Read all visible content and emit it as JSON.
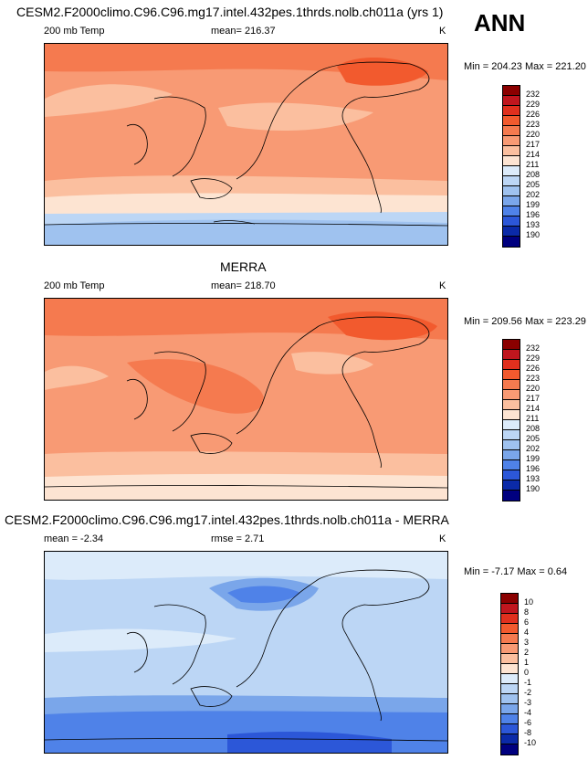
{
  "season_label": "ANN",
  "panels": [
    {
      "title": "CESM2.F2000climo.C96.C96.mg17.intel.432pes.1thrds.nolb.ch011a (yrs 1)",
      "left_label": "200 mb Temp",
      "center_label": "mean= 216.37",
      "right_label": "K",
      "minmax": "Min = 204.23 Max = 221.20",
      "colorbar": {
        "ticks": [
          "232",
          "229",
          "226",
          "223",
          "220",
          "217",
          "214",
          "211",
          "208",
          "205",
          "202",
          "199",
          "196",
          "193",
          "190"
        ],
        "colors": [
          "#8b0000",
          "#c0161e",
          "#e0301e",
          "#f25a2e",
          "#f57a4f",
          "#f89a74",
          "#fbbf9f",
          "#fde4d2",
          "#dcebfa",
          "#bcd6f5",
          "#9fc2ef",
          "#7aa6ea",
          "#4f82e8",
          "#2c57d8",
          "#0b2aa8",
          "#00007f"
        ]
      }
    },
    {
      "title": "MERRA",
      "left_label": "200 mb Temp",
      "center_label": "mean= 218.70",
      "right_label": "K",
      "minmax": "Min = 209.56 Max = 223.29",
      "colorbar": {
        "ticks": [
          "232",
          "229",
          "226",
          "223",
          "220",
          "217",
          "214",
          "211",
          "208",
          "205",
          "202",
          "199",
          "196",
          "193",
          "190"
        ],
        "colors": [
          "#8b0000",
          "#c0161e",
          "#e0301e",
          "#f25a2e",
          "#f57a4f",
          "#f89a74",
          "#fbbf9f",
          "#fde4d2",
          "#dcebfa",
          "#bcd6f5",
          "#9fc2ef",
          "#7aa6ea",
          "#4f82e8",
          "#2c57d8",
          "#0b2aa8",
          "#00007f"
        ]
      }
    },
    {
      "title": "CESM2.F2000climo.C96.C96.mg17.intel.432pes.1thrds.nolb.ch011a - MERRA",
      "left_label": "mean =  -2.34",
      "center_label": "rmse =   2.71",
      "right_label": "K",
      "minmax": "Min =  -7.17 Max =   0.64",
      "colorbar": {
        "ticks": [
          "10",
          "8",
          "6",
          "4",
          "3",
          "2",
          "1",
          "0",
          "-1",
          "-2",
          "-3",
          "-4",
          "-6",
          "-8",
          "-10"
        ],
        "colors": [
          "#8b0000",
          "#c0161e",
          "#e0301e",
          "#f25a2e",
          "#f57a4f",
          "#f89a74",
          "#fbbf9f",
          "#fde4d2",
          "#dcebfa",
          "#bcd6f5",
          "#9fc2ef",
          "#7aa6ea",
          "#4f82e8",
          "#2c57d8",
          "#0b2aa8",
          "#00007f"
        ]
      }
    }
  ],
  "chart_data": [
    {
      "type": "heatmap",
      "title": "CESM2.F2000climo.C96.C96.mg17.intel.432pes.1thrds.nolb.ch011a (yrs 1)",
      "field": "200 mb Temp",
      "units": "K",
      "mean": 216.37,
      "min": 204.23,
      "max": 221.2,
      "contour_levels": [
        190,
        193,
        196,
        199,
        202,
        205,
        208,
        211,
        214,
        217,
        220,
        223,
        226,
        229,
        232
      ]
    },
    {
      "type": "heatmap",
      "title": "MERRA",
      "field": "200 mb Temp",
      "units": "K",
      "mean": 218.7,
      "min": 209.56,
      "max": 223.29,
      "contour_levels": [
        190,
        193,
        196,
        199,
        202,
        205,
        208,
        211,
        214,
        217,
        220,
        223,
        226,
        229,
        232
      ]
    },
    {
      "type": "heatmap",
      "title": "CESM2.F2000climo.C96.C96.mg17.intel.432pes.1thrds.nolb.ch011a - MERRA",
      "units": "K",
      "mean": -2.34,
      "rmse": 2.71,
      "min": -7.17,
      "max": 0.64,
      "contour_levels": [
        -10,
        -8,
        -6,
        -4,
        -3,
        -2,
        -1,
        0,
        1,
        2,
        3,
        4,
        6,
        8,
        10
      ]
    }
  ]
}
